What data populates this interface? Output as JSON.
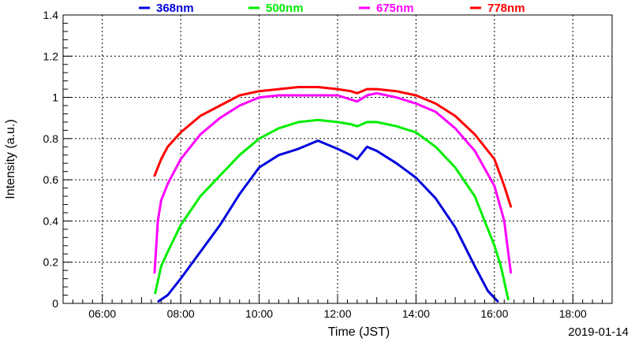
{
  "chart_data": {
    "type": "line",
    "title": "",
    "date": "2019-01-14",
    "xlabel": "Time (JST)",
    "ylabel": "Intensity (a.u.)",
    "xlim": [
      "05:00",
      "19:00"
    ],
    "ylim": [
      0,
      1.4
    ],
    "x_ticks": [
      "06:00",
      "08:00",
      "10:00",
      "12:00",
      "14:00",
      "16:00",
      "18:00"
    ],
    "y_ticks": [
      "0",
      "0.2",
      "0.4",
      "0.6",
      "0.8",
      "1",
      "1.2",
      "1.4"
    ],
    "grid": true,
    "legend_position": "top",
    "series": [
      {
        "name": "368nm",
        "color": "#0000dd",
        "points": [
          [
            "07:26",
            0.01
          ],
          [
            "07:40",
            0.04
          ],
          [
            "08:00",
            0.12
          ],
          [
            "08:30",
            0.25
          ],
          [
            "09:00",
            0.38
          ],
          [
            "09:30",
            0.53
          ],
          [
            "10:00",
            0.66
          ],
          [
            "10:30",
            0.72
          ],
          [
            "11:00",
            0.75
          ],
          [
            "11:30",
            0.79
          ],
          [
            "12:00",
            0.75
          ],
          [
            "12:20",
            0.72
          ],
          [
            "12:30",
            0.7
          ],
          [
            "12:45",
            0.76
          ],
          [
            "13:00",
            0.74
          ],
          [
            "13:30",
            0.68
          ],
          [
            "14:00",
            0.61
          ],
          [
            "14:30",
            0.51
          ],
          [
            "15:00",
            0.37
          ],
          [
            "15:30",
            0.18
          ],
          [
            "15:50",
            0.06
          ],
          [
            "16:05",
            0.01
          ]
        ]
      },
      {
        "name": "500nm",
        "color": "#00ee00",
        "points": [
          [
            "07:21",
            0.05
          ],
          [
            "07:30",
            0.18
          ],
          [
            "07:40",
            0.25
          ],
          [
            "08:00",
            0.38
          ],
          [
            "08:30",
            0.52
          ],
          [
            "09:00",
            0.62
          ],
          [
            "09:30",
            0.72
          ],
          [
            "10:00",
            0.8
          ],
          [
            "10:30",
            0.85
          ],
          [
            "11:00",
            0.88
          ],
          [
            "11:30",
            0.89
          ],
          [
            "12:00",
            0.88
          ],
          [
            "12:20",
            0.87
          ],
          [
            "12:30",
            0.86
          ],
          [
            "12:45",
            0.88
          ],
          [
            "13:00",
            0.88
          ],
          [
            "13:30",
            0.86
          ],
          [
            "14:00",
            0.83
          ],
          [
            "14:30",
            0.76
          ],
          [
            "15:00",
            0.66
          ],
          [
            "15:30",
            0.52
          ],
          [
            "16:00",
            0.28
          ],
          [
            "16:10",
            0.18
          ],
          [
            "16:21",
            0.02
          ]
        ]
      },
      {
        "name": "675nm",
        "color": "#ff00ff",
        "points": [
          [
            "07:20",
            0.15
          ],
          [
            "07:25",
            0.4
          ],
          [
            "07:30",
            0.5
          ],
          [
            "07:40",
            0.58
          ],
          [
            "08:00",
            0.7
          ],
          [
            "08:30",
            0.82
          ],
          [
            "09:00",
            0.9
          ],
          [
            "09:30",
            0.96
          ],
          [
            "10:00",
            1.0
          ],
          [
            "10:30",
            1.01
          ],
          [
            "11:00",
            1.01
          ],
          [
            "11:30",
            1.01
          ],
          [
            "12:00",
            1.01
          ],
          [
            "12:20",
            0.99
          ],
          [
            "12:30",
            0.98
          ],
          [
            "12:45",
            1.01
          ],
          [
            "13:00",
            1.02
          ],
          [
            "13:30",
            1.0
          ],
          [
            "14:00",
            0.97
          ],
          [
            "14:30",
            0.93
          ],
          [
            "15:00",
            0.85
          ],
          [
            "15:30",
            0.74
          ],
          [
            "16:00",
            0.57
          ],
          [
            "16:15",
            0.4
          ],
          [
            "16:25",
            0.15
          ]
        ]
      },
      {
        "name": "778nm",
        "color": "#ff0000",
        "points": [
          [
            "07:20",
            0.62
          ],
          [
            "07:30",
            0.7
          ],
          [
            "07:40",
            0.76
          ],
          [
            "08:00",
            0.83
          ],
          [
            "08:30",
            0.91
          ],
          [
            "09:00",
            0.96
          ],
          [
            "09:30",
            1.01
          ],
          [
            "10:00",
            1.03
          ],
          [
            "10:30",
            1.04
          ],
          [
            "11:00",
            1.05
          ],
          [
            "11:30",
            1.05
          ],
          [
            "12:00",
            1.04
          ],
          [
            "12:20",
            1.03
          ],
          [
            "12:30",
            1.02
          ],
          [
            "12:45",
            1.04
          ],
          [
            "13:00",
            1.04
          ],
          [
            "13:30",
            1.03
          ],
          [
            "14:00",
            1.01
          ],
          [
            "14:30",
            0.97
          ],
          [
            "15:00",
            0.91
          ],
          [
            "15:30",
            0.82
          ],
          [
            "16:00",
            0.7
          ],
          [
            "16:15",
            0.57
          ],
          [
            "16:25",
            0.47
          ]
        ]
      }
    ]
  }
}
